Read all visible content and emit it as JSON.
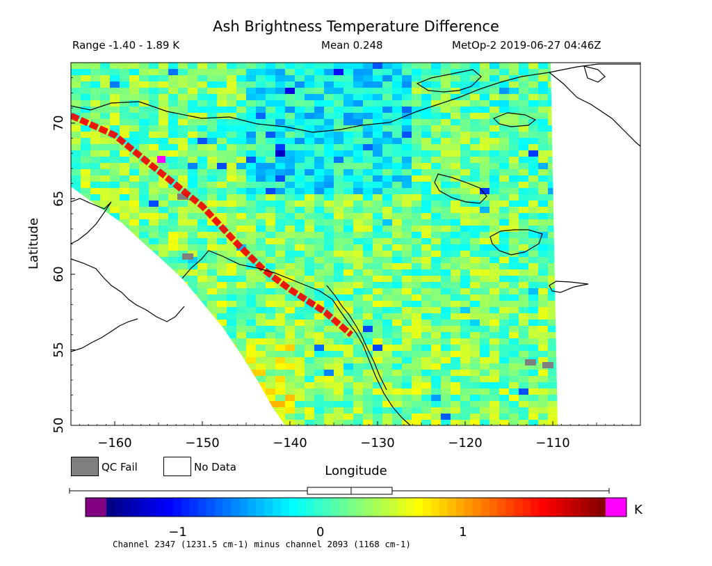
{
  "chart_data": {
    "type": "heatmap",
    "title": "Ash Brightness Temperature Difference",
    "range_text": "Range -1.40 - 1.89 K",
    "mean_text": "Mean 0.248",
    "satellite_text": "MetOp-2 2019-06-27 04:46Z",
    "xlabel": "Longitude",
    "ylabel": "Latitude",
    "x_ticks": [
      -160,
      -150,
      -140,
      -130,
      -120,
      -110
    ],
    "y_ticks": [
      50,
      55,
      60,
      65,
      70
    ],
    "xlim": [
      -165,
      -100
    ],
    "ylim": [
      50,
      74
    ],
    "value_range": [
      -1.4,
      1.89
    ],
    "mean": 0.248,
    "colorbar": {
      "ticks": [
        -1,
        0,
        1
      ],
      "unit": "K",
      "vmin": -1.5,
      "vmax": 2.0,
      "stats_box": {
        "q1": 0.07,
        "median": 0.25,
        "q3": 0.43,
        "min": -1.4,
        "max": 1.89
      }
    },
    "legend": [
      {
        "label": "QC Fail",
        "color": "#7f7f7f"
      },
      {
        "label": "No Data",
        "color": "#ffffff"
      }
    ],
    "colors": {
      "below_range": "#800080",
      "above_range": "#ff00ff",
      "qc_fail": "#7f7f7f"
    },
    "features": [
      {
        "name": "ash plume band",
        "path_lonlat": [
          [
            -165,
            70.5
          ],
          [
            -160,
            69.2
          ],
          [
            -156,
            67.3
          ],
          [
            -150,
            64.5
          ],
          [
            -146,
            62
          ],
          [
            -143,
            60.3
          ],
          [
            -140,
            59
          ],
          [
            -136,
            57.5
          ],
          [
            -133,
            56
          ]
        ],
        "value": 1.6
      }
    ],
    "footnote": "Channel 2347 (1231.5 cm-1) minus channel 2093 (1168 cm-1)"
  }
}
